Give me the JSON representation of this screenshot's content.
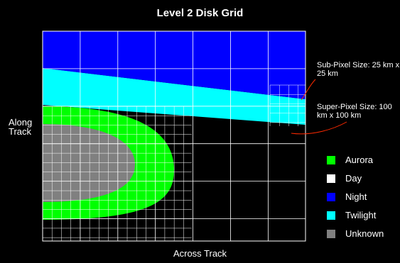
{
  "title": "Level 2 Disk Grid",
  "axes": {
    "y_label": "Along Track",
    "x_label": "Across Track"
  },
  "annotations": {
    "sub_pixel": "Sub-Pixel Size: 25 km x 25 km",
    "super_pixel": "Super-Pixel Size: 100 km x 100 km"
  },
  "legend": [
    {
      "label": "Aurora",
      "color": "#00ff00"
    },
    {
      "label": "Day",
      "color": "#ffffff"
    },
    {
      "label": "Night",
      "color": "#0000ff"
    },
    {
      "label": "Twilight",
      "color": "#00ffff"
    },
    {
      "label": "Unknown",
      "color": "#808080"
    }
  ]
}
